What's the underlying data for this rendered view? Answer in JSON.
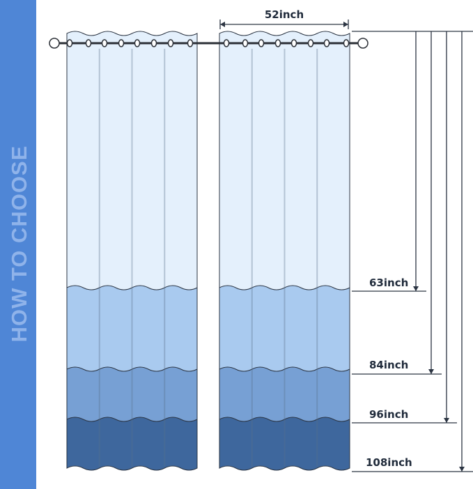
{
  "side_title": "HOW TO CHOOSE",
  "width_label": "52inch",
  "lengths": [
    {
      "label": "63inch"
    },
    {
      "label": "84inch"
    },
    {
      "label": "96inch"
    },
    {
      "label": "108inch"
    }
  ],
  "colors": {
    "sidebar": "#4f86d6",
    "band_63": "#e4f0fc",
    "band_84": "#a9caef",
    "band_96": "#77a0d4",
    "band_108": "#3e679d",
    "lines": "#2b3442"
  }
}
